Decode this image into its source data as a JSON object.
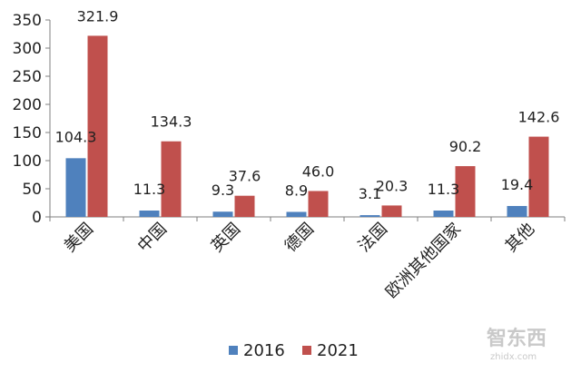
{
  "chart_data": {
    "type": "bar",
    "categories": [
      "美国",
      "中国",
      "英国",
      "德国",
      "法国",
      "欧洲其他国家",
      "其他"
    ],
    "series": [
      {
        "name": "2016",
        "values": [
          104.3,
          11.3,
          9.3,
          8.9,
          3.1,
          11.3,
          19.4
        ],
        "color": "#4f81bd"
      },
      {
        "name": "2021",
        "values": [
          321.9,
          134.3,
          37.6,
          46.0,
          20.3,
          90.2,
          142.6
        ],
        "color": "#c0504d"
      }
    ],
    "value_labels": [
      [
        "104.3",
        "11.3",
        "9.3",
        "8.9",
        "3.1",
        "11.3",
        "19.4"
      ],
      [
        "321.9",
        "134.3",
        "37.6",
        "46.0",
        "20.3",
        "90.2",
        "142.6"
      ]
    ],
    "y_ticks": [
      0,
      50,
      100,
      150,
      200,
      250,
      300,
      350
    ],
    "ylim": [
      0,
      350
    ],
    "legend_position": "bottom",
    "grid": false,
    "title": "",
    "xlabel": "",
    "ylabel": ""
  },
  "watermark": {
    "text": "智东西",
    "sub": "zhidx.com"
  }
}
